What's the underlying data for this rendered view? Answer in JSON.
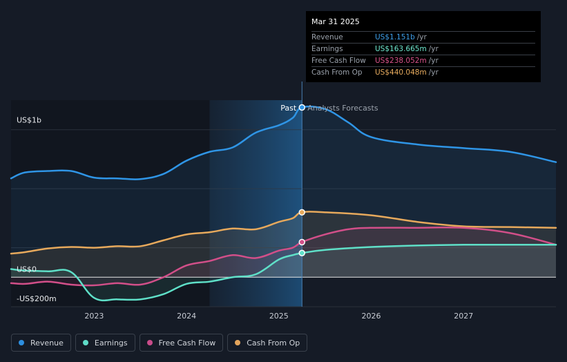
{
  "tooltip": {
    "date": "Mar 31 2025",
    "rows": [
      {
        "label": "Revenue",
        "value": "US$1.151b",
        "unit": "/yr",
        "color": "#3d9ee9"
      },
      {
        "label": "Earnings",
        "value": "US$163.665m",
        "unit": "/yr",
        "color": "#6fe8cf"
      },
      {
        "label": "Free Cash Flow",
        "value": "US$238.052m",
        "unit": "/yr",
        "color": "#d9538a"
      },
      {
        "label": "Cash From Op",
        "value": "US$440.048m",
        "unit": "/yr",
        "color": "#e7ab5e"
      }
    ]
  },
  "legend": [
    {
      "label": "Revenue",
      "color": "#2d8fe0"
    },
    {
      "label": "Earnings",
      "color": "#5fdcc8"
    },
    {
      "label": "Free Cash Flow",
      "color": "#c94c8a"
    },
    {
      "label": "Cash From Op",
      "color": "#e3a45c"
    }
  ],
  "chart_data": {
    "type": "line",
    "title": "",
    "xlabel": "",
    "ylabel": "",
    "xlim": [
      2022.1,
      2028.0
    ],
    "ylim": [
      -200,
      1200
    ],
    "past_divider_x": 2025.25,
    "past_label": "Past",
    "forecast_label": "Analysts Forecasts",
    "x_ticks": [
      2023,
      2024,
      2025,
      2026,
      2027
    ],
    "y_tick_labels": [
      {
        "value": 1000,
        "label": "US$1b"
      },
      {
        "value": 0,
        "label": "US$0"
      },
      {
        "value": -200,
        "label": "-US$200m"
      }
    ],
    "series": [
      {
        "name": "Revenue",
        "color": "#2f95e6",
        "points": [
          [
            2022.1,
            670
          ],
          [
            2022.25,
            710
          ],
          [
            2022.5,
            720
          ],
          [
            2022.75,
            720
          ],
          [
            2023.0,
            675
          ],
          [
            2023.25,
            670
          ],
          [
            2023.5,
            665
          ],
          [
            2023.75,
            700
          ],
          [
            2024.0,
            790
          ],
          [
            2024.25,
            850
          ],
          [
            2024.5,
            880
          ],
          [
            2024.75,
            980
          ],
          [
            2025.0,
            1030
          ],
          [
            2025.15,
            1080
          ],
          [
            2025.25,
            1151
          ],
          [
            2025.5,
            1140
          ],
          [
            2025.75,
            1050
          ],
          [
            2026.0,
            950
          ],
          [
            2026.5,
            900
          ],
          [
            2027.0,
            875
          ],
          [
            2027.5,
            850
          ],
          [
            2028.0,
            780
          ]
        ]
      },
      {
        "name": "Cash From Op",
        "color": "#e7a95c",
        "points": [
          [
            2022.1,
            160
          ],
          [
            2022.25,
            170
          ],
          [
            2022.5,
            195
          ],
          [
            2022.75,
            205
          ],
          [
            2023.0,
            200
          ],
          [
            2023.25,
            210
          ],
          [
            2023.5,
            210
          ],
          [
            2023.75,
            250
          ],
          [
            2024.0,
            290
          ],
          [
            2024.25,
            305
          ],
          [
            2024.5,
            330
          ],
          [
            2024.75,
            325
          ],
          [
            2025.0,
            375
          ],
          [
            2025.15,
            400
          ],
          [
            2025.25,
            440
          ],
          [
            2025.5,
            440
          ],
          [
            2026.0,
            420
          ],
          [
            2026.5,
            375
          ],
          [
            2027.0,
            345
          ],
          [
            2027.5,
            340
          ],
          [
            2028.0,
            335
          ]
        ]
      },
      {
        "name": "Free Cash Flow",
        "color": "#d24f89",
        "points": [
          [
            2022.1,
            -40
          ],
          [
            2022.25,
            -45
          ],
          [
            2022.5,
            -30
          ],
          [
            2022.75,
            -50
          ],
          [
            2023.0,
            -55
          ],
          [
            2023.25,
            -40
          ],
          [
            2023.5,
            -50
          ],
          [
            2023.75,
            0
          ],
          [
            2024.0,
            80
          ],
          [
            2024.25,
            110
          ],
          [
            2024.5,
            150
          ],
          [
            2024.75,
            130
          ],
          [
            2025.0,
            180
          ],
          [
            2025.15,
            200
          ],
          [
            2025.25,
            238
          ],
          [
            2025.5,
            290
          ],
          [
            2025.75,
            325
          ],
          [
            2026.0,
            335
          ],
          [
            2026.5,
            335
          ],
          [
            2027.0,
            335
          ],
          [
            2027.5,
            300
          ],
          [
            2028.0,
            220
          ]
        ]
      },
      {
        "name": "Earnings",
        "color": "#5fe0c8",
        "points": [
          [
            2022.1,
            55
          ],
          [
            2022.25,
            45
          ],
          [
            2022.5,
            40
          ],
          [
            2022.75,
            35
          ],
          [
            2023.0,
            -140
          ],
          [
            2023.25,
            -150
          ],
          [
            2023.5,
            -150
          ],
          [
            2023.75,
            -115
          ],
          [
            2024.0,
            -45
          ],
          [
            2024.25,
            -30
          ],
          [
            2024.5,
            0
          ],
          [
            2024.75,
            20
          ],
          [
            2025.0,
            120
          ],
          [
            2025.15,
            150
          ],
          [
            2025.25,
            164
          ],
          [
            2025.5,
            185
          ],
          [
            2026.0,
            205
          ],
          [
            2026.5,
            215
          ],
          [
            2027.0,
            220
          ],
          [
            2027.5,
            220
          ],
          [
            2028.0,
            220
          ]
        ]
      }
    ]
  }
}
